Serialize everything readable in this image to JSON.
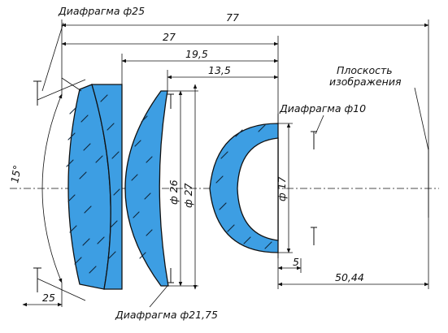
{
  "labels": {
    "stop_25": "Диафрагма ф25",
    "stop_10": "Диафрагма ф10",
    "stop_2175": "Диафрагма ф21,75",
    "image_plane_line1": "Плоскость",
    "image_plane_line2": "изображения"
  },
  "dimensions": {
    "total_length": "77",
    "length_27": "27",
    "length_19_5": "19,5",
    "length_13_5": "13,5",
    "diameter_26": "ф 26",
    "diameter_27": "ф 27",
    "diameter_17": "ф 17",
    "length_5": "5",
    "length_50_44": "50,44",
    "length_25": "25",
    "angle_15": "15°"
  },
  "colors": {
    "glass": "#3d9ee3",
    "line": "#111111"
  }
}
